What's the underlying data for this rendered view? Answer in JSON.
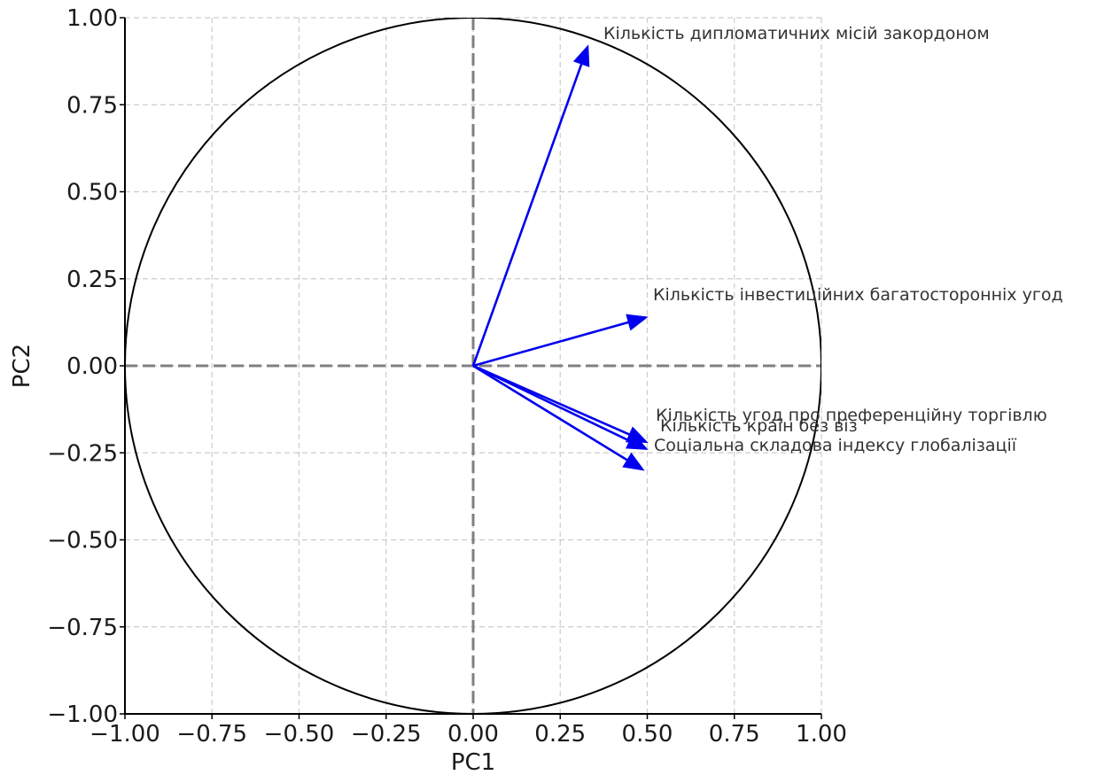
{
  "chart_data": {
    "type": "scatter",
    "title": "",
    "xlabel": "PC1",
    "ylabel": "PC2",
    "xlim": [
      -1.0,
      1.0
    ],
    "ylim": [
      -1.0,
      1.0
    ],
    "grid": true,
    "unit_circle": true,
    "origin_lines": true,
    "x_ticks": [
      "−1.00",
      "−0.75",
      "−0.50",
      "−0.25",
      "0.00",
      "0.25",
      "0.50",
      "0.75",
      "1.00"
    ],
    "y_ticks": [
      "−1.00",
      "−0.75",
      "−0.50",
      "−0.25",
      "0.00",
      "0.25",
      "0.50",
      "0.75",
      "1.00"
    ],
    "vectors": [
      {
        "label": "Кількість дипломатичних місій закордоном",
        "x": 0.33,
        "y": 0.92
      },
      {
        "label": "Кількість інвестиційних багатосторонніх угод",
        "x": 0.5,
        "y": 0.14
      },
      {
        "label": "Кількість угод про преференційну торгівлю",
        "x": 0.5,
        "y": -0.22
      },
      {
        "label": "Кількість країн без віз",
        "x": 0.5,
        "y": -0.24
      },
      {
        "label": "Соціальна складова індексу глобалізації",
        "x": 0.49,
        "y": -0.3
      }
    ],
    "colors": {
      "vector": "#0000ee",
      "circle": "#000000",
      "grid": "#cccccc",
      "origin": "#808080"
    }
  }
}
